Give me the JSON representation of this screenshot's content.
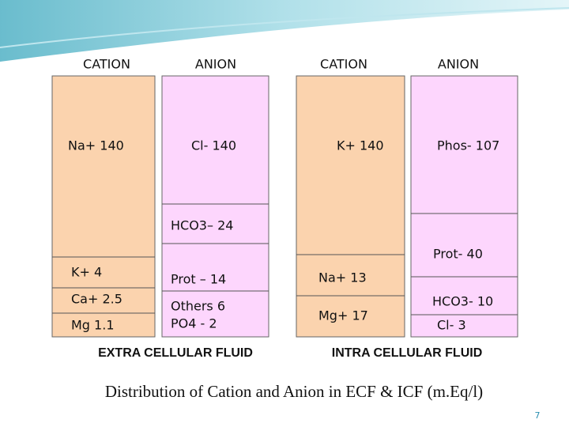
{
  "headers": [
    "CATION",
    "ANION",
    "CATION",
    "ANION"
  ],
  "ecf": {
    "cation": [
      "Na+ 140",
      "K+ 4",
      "Ca+ 2.5",
      "Mg 1.1"
    ],
    "anion": [
      "Cl- 140",
      "HCO3– 24",
      "Prot – 14",
      "Others 6",
      "PO4 - 2"
    ],
    "label": "EXTRA CELLULAR FLUID"
  },
  "icf": {
    "cation": [
      "K+ 140",
      "Na+ 13",
      "Mg+ 17"
    ],
    "anion": [
      "Phos- 107",
      "Prot- 40",
      "HCO3- 10",
      "Cl- 3"
    ],
    "label": "INTRA CELLULAR  FLUID"
  },
  "title": "Distribution of Cation and Anion in ECF & ICF (m.Eq/l)",
  "page_number": "7"
}
